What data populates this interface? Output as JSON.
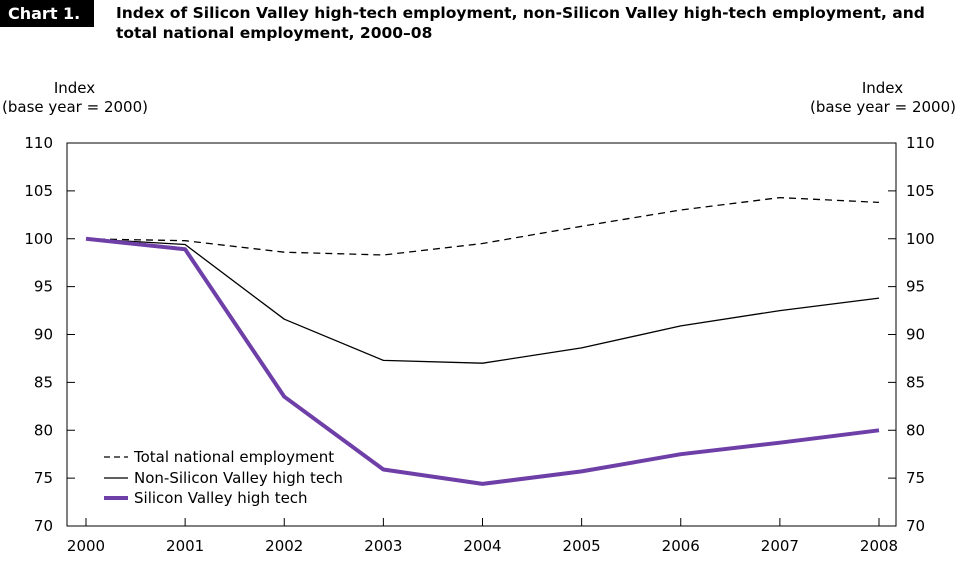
{
  "header": {
    "badge": "Chart 1.",
    "title": "Index of Silicon Valley high-tech employment, non-Silicon Valley high-tech employment, and total national employment, 2000–08"
  },
  "axes": {
    "left_label_line1": "Index",
    "left_label_line2": "(base year = 2000)",
    "right_label_line1": "Index",
    "right_label_line2": "(base year = 2000)"
  },
  "chart_data": {
    "type": "line",
    "x": [
      2000,
      2001,
      2002,
      2003,
      2004,
      2005,
      2006,
      2007,
      2008
    ],
    "xticks": [
      "2000",
      "2001",
      "2002",
      "2003",
      "2004",
      "2005",
      "2006",
      "2007",
      "2008"
    ],
    "ylim": [
      70,
      110
    ],
    "yticks": [
      "70",
      "75",
      "80",
      "85",
      "90",
      "95",
      "100",
      "105",
      "110"
    ],
    "series": [
      {
        "name": "Total national employment",
        "style": "dashed",
        "color": "#000000",
        "values": [
          100,
          99.8,
          98.6,
          98.3,
          99.5,
          101.3,
          103.0,
          104.3,
          103.8
        ]
      },
      {
        "name": "Non-Silicon Valley high tech",
        "style": "solid",
        "color": "#000000",
        "values": [
          100,
          99.4,
          91.6,
          87.3,
          87.0,
          88.6,
          90.9,
          92.5,
          93.8
        ]
      },
      {
        "name": "Silicon Valley high tech",
        "style": "thick",
        "color": "#6f3fa8",
        "values": [
          100,
          98.9,
          83.5,
          75.9,
          74.4,
          75.7,
          77.5,
          78.7,
          80.0
        ]
      }
    ],
    "legend": "bottom-left",
    "grid": false
  }
}
